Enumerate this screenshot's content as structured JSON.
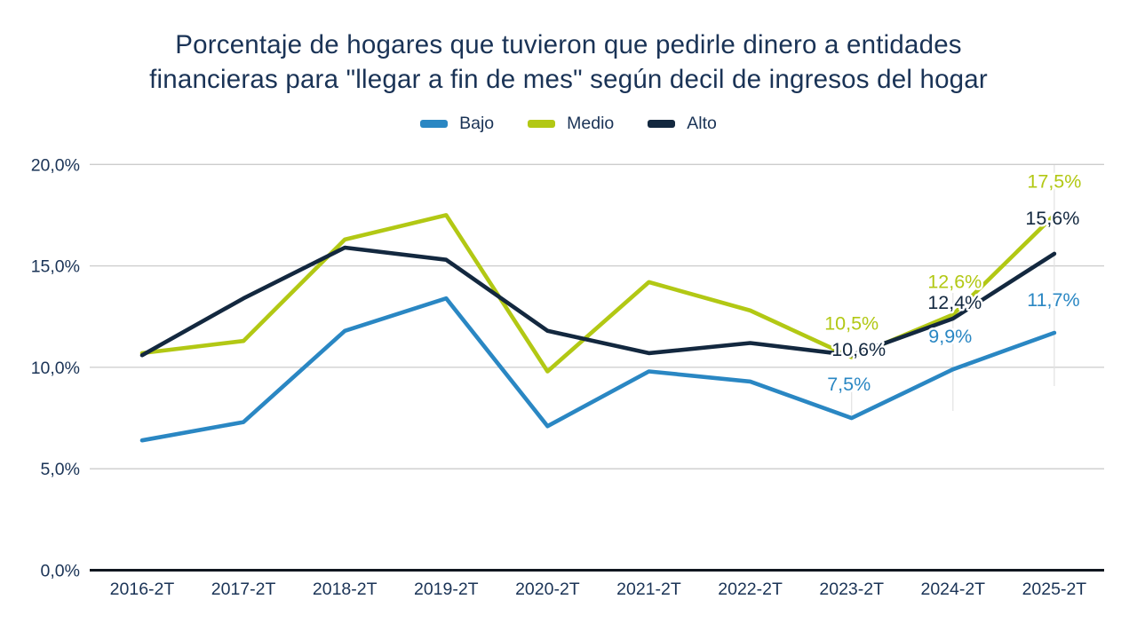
{
  "chart_data": {
    "type": "line",
    "title": "Porcentaje de hogares que tuvieron que pedirle dinero a entidades financieras para \"llegar a fin de mes\" según decil de ingresos del hogar",
    "title_lines": [
      "Porcentaje de hogares que tuvieron que pedirle dinero a entidades",
      "financieras para \"llegar a fin de mes\" según decil de ingresos del hogar"
    ],
    "categories": [
      "2016-2T",
      "2017-2T",
      "2018-2T",
      "2019-2T",
      "2020-2T",
      "2021-2T",
      "2022-2T",
      "2023-2T",
      "2024-2T",
      "2025-2T"
    ],
    "series": [
      {
        "name": "Bajo",
        "color": "#2a87c3",
        "values": [
          6.4,
          7.3,
          11.8,
          13.4,
          7.1,
          9.8,
          9.3,
          7.5,
          9.9,
          11.7
        ]
      },
      {
        "name": "Medio",
        "color": "#b2c814",
        "values": [
          10.7,
          11.3,
          16.3,
          17.5,
          9.8,
          14.2,
          12.8,
          10.5,
          12.6,
          17.5
        ]
      },
      {
        "name": "Alto",
        "color": "#13283f",
        "values": [
          10.6,
          13.4,
          15.9,
          15.3,
          11.8,
          10.7,
          11.2,
          10.6,
          12.4,
          15.6
        ]
      }
    ],
    "y_ticks": [
      "0,0%",
      "5,0%",
      "10,0%",
      "15,0%",
      "20,0%"
    ],
    "ylim": [
      0,
      20
    ],
    "xlabel": "",
    "ylabel": "",
    "grid": "horizontal",
    "legend_position": "top",
    "annotations": [
      {
        "series": "Medio",
        "category": "2023-2T",
        "text": "10,5%"
      },
      {
        "series": "Alto",
        "category": "2023-2T",
        "text": "10,6%"
      },
      {
        "series": "Bajo",
        "category": "2023-2T",
        "text": "7,5%"
      },
      {
        "series": "Medio",
        "category": "2024-2T",
        "text": "12,6%"
      },
      {
        "series": "Alto",
        "category": "2024-2T",
        "text": "12,4%"
      },
      {
        "series": "Bajo",
        "category": "2024-2T",
        "text": "9,9%"
      },
      {
        "series": "Medio",
        "category": "2025-2T",
        "text": "17,5%"
      },
      {
        "series": "Alto",
        "category": "2025-2T",
        "text": "15,6%"
      },
      {
        "series": "Bajo",
        "category": "2025-2T",
        "text": "11,7%"
      }
    ]
  },
  "colors": {
    "title_text": "#1a3356",
    "axis_text": "#1a3356",
    "gridline": "#cccccc",
    "faint_vertical": "#e2e2e2",
    "axis_line": "#10161f",
    "background": "#ffffff"
  }
}
